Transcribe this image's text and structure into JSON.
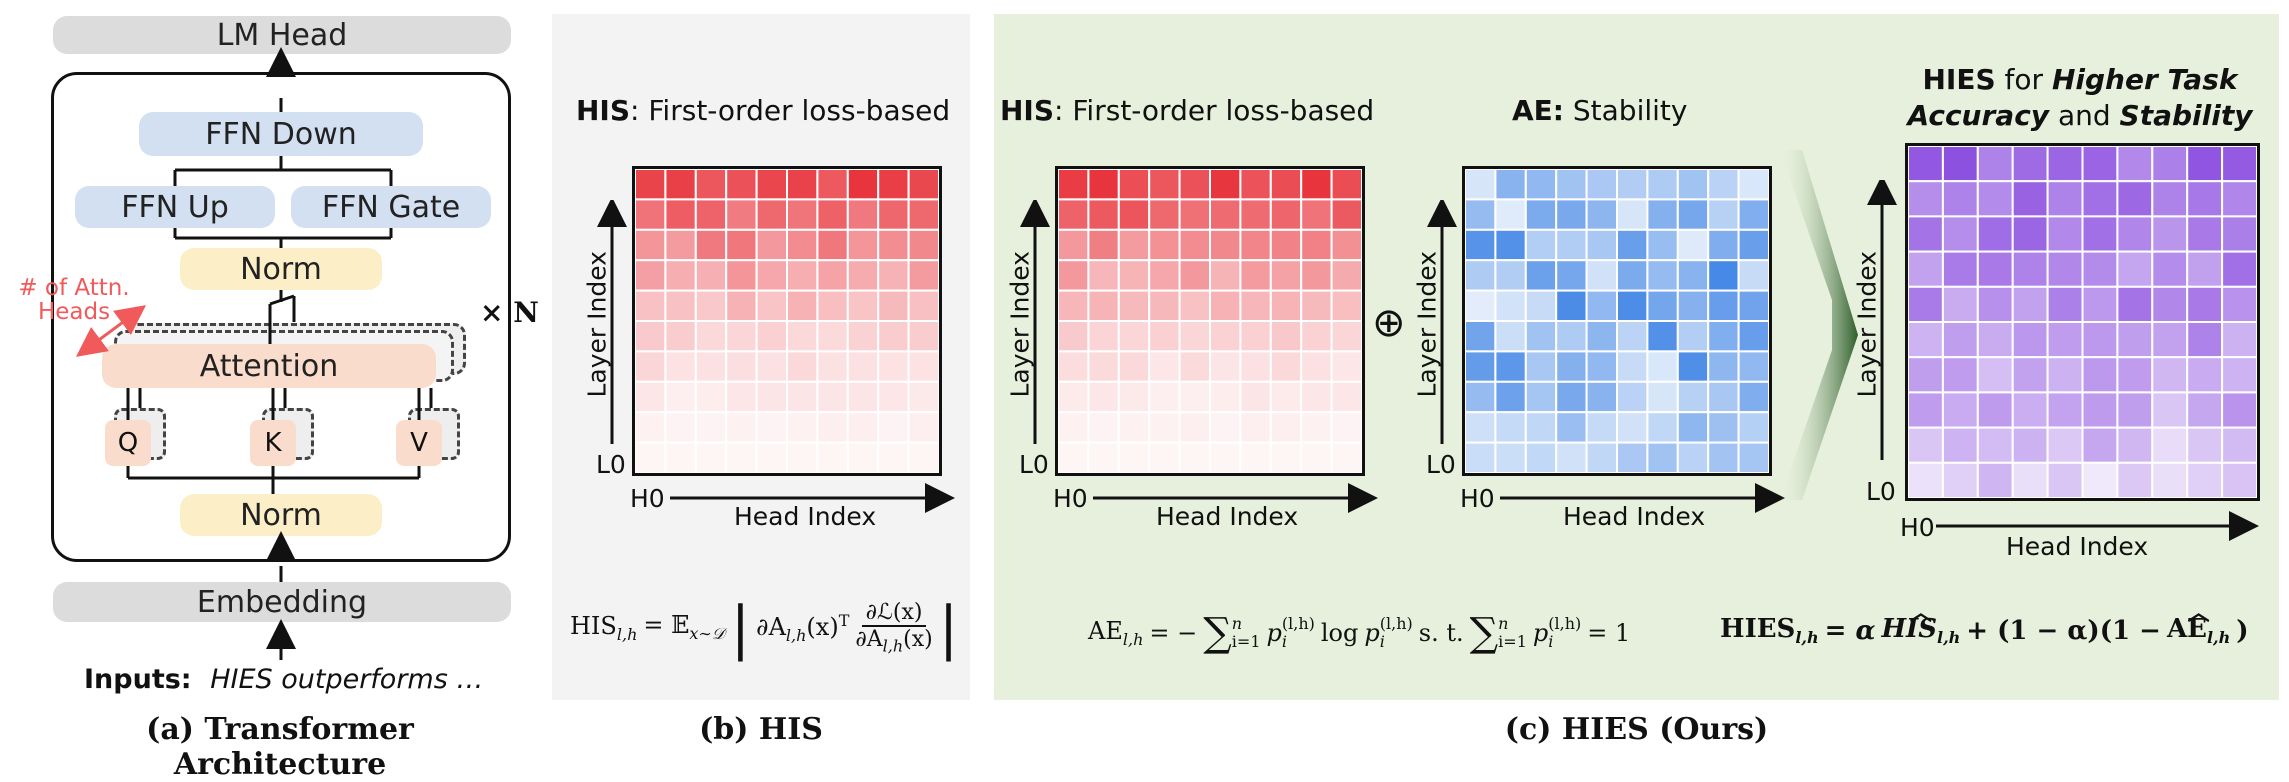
{
  "panel_a": {
    "lm_head": "LM Head",
    "ffn_down": "FFN Down",
    "ffn_up": "FFN Up",
    "ffn_gate": "FFN Gate",
    "norm_top": "Norm",
    "attention": "Attention",
    "q": "Q",
    "k": "K",
    "v": "V",
    "norm_bottom": "Norm",
    "embedding": "Embedding",
    "heads_note_line1": "# of Attn.",
    "heads_note_line2": "Heads",
    "times_n": "× N",
    "inputs_label": "Inputs:",
    "inputs_text": "HIES outperforms …",
    "caption": "(a) Transformer Architecture",
    "note_color": "#f05a5a"
  },
  "panel_b": {
    "title_bold": "HIS",
    "title_rest": ": First-order loss-based",
    "y_axis": "Layer Index",
    "x_axis": "Head Index",
    "l0": "L0",
    "h0": "H0",
    "formula_lhs": "HIS",
    "formula_lhs_sub": "l,h",
    "formula_eq": "= 𝔼",
    "formula_exp_sub": "x∼𝒟",
    "formula_body": "∂A",
    "formula_body_sub": "l,h",
    "formula_body_arg": "(x)",
    "formula_body_sup": "T",
    "frac_num": "∂ℒ(x)",
    "frac_den": "∂A",
    "frac_den_sub": "l,h",
    "frac_den_arg": "(x)",
    "caption": "(b) HIS",
    "bg_color": "#f3f3f3"
  },
  "panel_c": {
    "his_title_bold": "HIS",
    "his_title_rest": ": First-order loss-based",
    "ae_title_bold": "AE:",
    "ae_title_rest": " Stability",
    "hies_title_line1_bold": "HIES",
    "hies_title_line1_rest": " for ",
    "hies_title_line1_bi": "Higher Task",
    "hies_title_line2_bi1": "Accuracy",
    "hies_title_line2_mid": " and ",
    "hies_title_line2_bi2": "Stability",
    "y_axis": "Layer Index",
    "x_axis": "Head Index",
    "l0": "L0",
    "h0": "H0",
    "oplus": "⊕",
    "ae_formula_lhs": "AE",
    "ae_formula_lhs_sub": "l,h",
    "ae_formula_eq": "= −",
    "ae_sum_sup": "n",
    "ae_sum_sub": "i=1",
    "ae_p": "p",
    "ae_p_sup": "(l,h)",
    "ae_p_sub": "i",
    "ae_log": "log",
    "ae_st": "s. t.",
    "ae_eq_one": "= 1",
    "hies_formula_lhs": "HIES",
    "hies_formula_lhs_sub": "l,h",
    "hies_formula_eq": "= α",
    "hies_formula_his": "HIS",
    "hies_formula_his_sub": "l,h",
    "hies_formula_plus": "+ (1 − α)(1 −",
    "hies_formula_ae": "AE",
    "hies_formula_ae_sub": "l,h",
    "hies_formula_close": ")",
    "caption": "(c) HIES (Ours)",
    "bg_color": "#e6f0dc"
  },
  "colors": {
    "his_heat": "#e8343c",
    "ae_heat": "#1f6fe0",
    "hies_heat": "#8c4fe0"
  }
}
